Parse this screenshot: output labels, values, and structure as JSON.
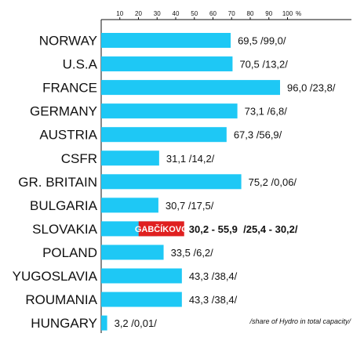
{
  "colors": {
    "bar": "#1ec8f5",
    "highlight": "#e02020",
    "text": "#111111"
  },
  "chart_data": {
    "type": "bar",
    "orientation": "horizontal",
    "xlim": [
      0,
      100
    ],
    "ticks": [
      10,
      20,
      30,
      40,
      50,
      60,
      70,
      80,
      90,
      100
    ],
    "unit_label": "%",
    "categories": [
      "NORWAY",
      "U.S.A",
      "FRANCE",
      "GERMANY",
      "AUSTRIA",
      "CSFR",
      "GR. BRITAIN",
      "BULGARIA",
      "SLOVAKIA",
      "POLAND",
      "YUGOSLAVIA",
      "ROUMANIA",
      "HUNGARY"
    ],
    "values": [
      69.5,
      70.5,
      96.0,
      73.1,
      67.3,
      31.1,
      75.2,
      30.7,
      30.2,
      33.5,
      43.3,
      43.3,
      3.2
    ],
    "labels": [
      "69,5 /99,0/",
      "70,5 /13,2/",
      "96,0 /23,8/",
      "73,1 /6,8/",
      "67,3 /56,9/",
      "31,1 /14,2/",
      "75,2 /0,06/",
      "30,7 /17,5/",
      "30,2 - 55,9  /25,4 - 30,2/",
      "33,5 /6,2/",
      "43,3 /38,4/",
      "43,3 /38,4/",
      "3,2 /0,01/"
    ],
    "highlight": {
      "index": 8,
      "label": "GABČÍKOVO",
      "end_value": 55.9
    },
    "note": "/share of Hydro in total capacity/"
  }
}
